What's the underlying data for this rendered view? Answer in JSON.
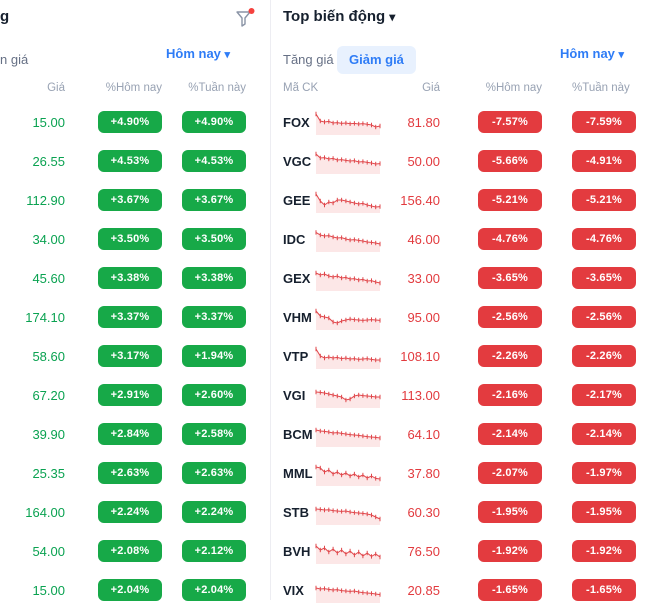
{
  "colors": {
    "green": "#17a948",
    "red": "#e33b3f",
    "blue": "#2e7cf6",
    "spark_line": "#e0474b",
    "spark_fill": "rgba(229,56,59,0.12)",
    "alert_dot": "#f5413d"
  },
  "icons": {
    "dropdown": "▾",
    "filter": "funnel"
  },
  "left_panel": {
    "title_partial": "g",
    "tab_partial": "n giá",
    "period_label": "Hôm nay",
    "columns": {
      "price": "Giá",
      "today": "%Hôm nay",
      "week": "%Tuần này"
    },
    "rows": [
      {
        "price": "15.00",
        "today": "+4.90%",
        "week": "+4.90%"
      },
      {
        "price": "26.55",
        "today": "+4.53%",
        "week": "+4.53%"
      },
      {
        "price": "112.90",
        "today": "+3.67%",
        "week": "+3.67%"
      },
      {
        "price": "34.00",
        "today": "+3.50%",
        "week": "+3.50%"
      },
      {
        "price": "45.60",
        "today": "+3.38%",
        "week": "+3.38%"
      },
      {
        "price": "174.10",
        "today": "+3.37%",
        "week": "+3.37%"
      },
      {
        "price": "58.60",
        "today": "+3.17%",
        "week": "+1.94%"
      },
      {
        "price": "67.20",
        "today": "+2.91%",
        "week": "+2.60%"
      },
      {
        "price": "39.90",
        "today": "+2.84%",
        "week": "+2.58%"
      },
      {
        "price": "25.35",
        "today": "+2.63%",
        "week": "+2.63%"
      },
      {
        "price": "164.00",
        "today": "+2.24%",
        "week": "+2.24%"
      },
      {
        "price": "54.00",
        "today": "+2.08%",
        "week": "+2.12%"
      },
      {
        "price": "15.00",
        "today": "+2.04%",
        "week": "+2.04%"
      }
    ]
  },
  "right_panel": {
    "title": "Top biến động",
    "tabs": [
      {
        "label": "Tăng giá",
        "active": false
      },
      {
        "label": "Giảm giá",
        "active": true
      }
    ],
    "period_label": "Hôm nay",
    "columns": {
      "symbol": "Mã CK",
      "price": "Giá",
      "today": "%Hôm nay",
      "week": "%Tuần này"
    },
    "rows": [
      {
        "symbol": "FOX",
        "price": "81.80",
        "today": "-7.57%",
        "week": "-7.59%",
        "spark": [
          95,
          60,
          55,
          58,
          50,
          52,
          48,
          50,
          46,
          48,
          45,
          47,
          44,
          40,
          30,
          35
        ]
      },
      {
        "symbol": "VGC",
        "price": "50.00",
        "today": "-5.66%",
        "week": "-4.91%",
        "spark": [
          90,
          70,
          72,
          65,
          68,
          60,
          62,
          58,
          55,
          57,
          50,
          52,
          48,
          45,
          40,
          42
        ]
      },
      {
        "symbol": "GEE",
        "price": "156.40",
        "today": "-5.21%",
        "week": "-5.21%",
        "spark": [
          85,
          50,
          30,
          45,
          40,
          55,
          55,
          50,
          45,
          40,
          35,
          38,
          30,
          25,
          20,
          22
        ]
      },
      {
        "symbol": "IDC",
        "price": "46.00",
        "today": "-4.76%",
        "week": "-4.76%",
        "spark": [
          88,
          75,
          70,
          72,
          65,
          60,
          62,
          55,
          50,
          52,
          48,
          45,
          40,
          38,
          35,
          30
        ]
      },
      {
        "symbol": "GEX",
        "price": "33.00",
        "today": "-3.65%",
        "week": "-3.65%",
        "spark": [
          80,
          70,
          75,
          65,
          60,
          65,
          55,
          58,
          50,
          52,
          45,
          48,
          40,
          42,
          35,
          30
        ]
      },
      {
        "symbol": "VHM",
        "price": "95.00",
        "today": "-2.56%",
        "week": "-2.56%",
        "spark": [
          85,
          60,
          55,
          50,
          30,
          25,
          35,
          40,
          45,
          42,
          40,
          38,
          40,
          42,
          40,
          38
        ]
      },
      {
        "symbol": "VTP",
        "price": "108.10",
        "today": "-2.26%",
        "week": "-2.26%",
        "spark": [
          90,
          55,
          45,
          50,
          45,
          48,
          42,
          45,
          40,
          42,
          38,
          40,
          42,
          38,
          35,
          35
        ]
      },
      {
        "symbol": "VGI",
        "price": "113.00",
        "today": "-2.16%",
        "week": "-2.17%",
        "spark": [
          70,
          68,
          65,
          60,
          55,
          50,
          45,
          30,
          35,
          50,
          55,
          52,
          50,
          48,
          45,
          45
        ]
      },
      {
        "symbol": "BCM",
        "price": "64.10",
        "today": "-2.14%",
        "week": "-2.14%",
        "spark": [
          75,
          70,
          68,
          65,
          60,
          62,
          58,
          55,
          52,
          50,
          48,
          45,
          42,
          40,
          38,
          35
        ]
      },
      {
        "symbol": "MML",
        "price": "37.80",
        "today": "-2.07%",
        "week": "-1.97%",
        "spark": [
          85,
          80,
          60,
          70,
          50,
          60,
          45,
          55,
          40,
          50,
          35,
          45,
          30,
          40,
          28,
          25
        ]
      },
      {
        "symbol": "STB",
        "price": "60.30",
        "today": "-1.95%",
        "week": "-1.95%",
        "spark": [
          70,
          68,
          65,
          66,
          62,
          60,
          58,
          60,
          55,
          52,
          50,
          48,
          45,
          40,
          30,
          20
        ]
      },
      {
        "symbol": "BVH",
        "price": "76.50",
        "today": "-1.92%",
        "week": "-1.92%",
        "spark": [
          80,
          60,
          70,
          50,
          65,
          45,
          60,
          40,
          55,
          35,
          50,
          30,
          45,
          28,
          40,
          25
        ]
      },
      {
        "symbol": "VIX",
        "price": "20.85",
        "today": "-1.65%",
        "week": "-1.65%",
        "spark": [
          65,
          60,
          62,
          58,
          55,
          57,
          52,
          50,
          48,
          50,
          45,
          42,
          40,
          38,
          35,
          32
        ]
      }
    ]
  }
}
